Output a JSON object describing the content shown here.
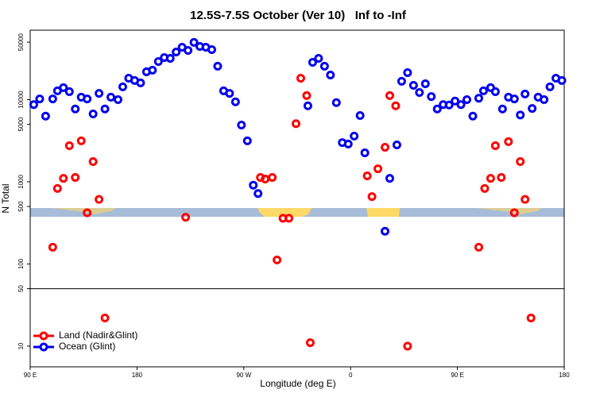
{
  "chart_data": {
    "type": "scatter",
    "title": "12.5S-7.5S October (Ver 10)   Inf to -Inf",
    "x_label": "Longitude (deg E)",
    "y_label": "N Total",
    "xlim": [
      90,
      540
    ],
    "xticks": [
      {
        "value": 90,
        "label": "90 E"
      },
      180,
      {
        "value": 270,
        "label": "90 W"
      },
      {
        "value": 360,
        "label": "0"
      },
      {
        "value": 450,
        "label": "90 E"
      },
      {
        "value": 540,
        "label": "180"
      }
    ],
    "ylim": [
      5.6,
      70000
    ],
    "yticks": [
      10,
      50,
      100,
      500,
      1000,
      5000,
      10000,
      50000
    ],
    "log_y": true,
    "hline": 50,
    "legend": "bottom-left",
    "series": [
      {
        "name": "Land (Nadir&Glint)",
        "color": "#ff0000",
        "x": [
          109,
          113,
          118,
          123,
          128,
          133,
          138,
          143,
          148,
          153,
          221,
          284,
          288,
          294,
          298,
          303,
          308,
          314,
          318,
          323,
          326,
          374,
          378,
          383,
          389,
          393,
          398,
          408,
          468,
          473,
          478,
          482,
          487,
          493,
          498,
          503,
          507,
          512
        ],
        "values": [
          160,
          830,
          1100,
          2750,
          1130,
          3150,
          420,
          1760,
          610,
          22,
          370,
          1130,
          1080,
          1130,
          112,
          360,
          360,
          5100,
          18200,
          11200,
          11,
          1180,
          660,
          1440,
          2630,
          11200,
          8400,
          10,
          160,
          830,
          1100,
          2750,
          1130,
          3080,
          420,
          1760,
          610,
          22
        ]
      },
      {
        "name": "Ocean (Glint)",
        "color": "#0000ee",
        "x": [
          93,
          98,
          103,
          109,
          113,
          118,
          123,
          128,
          133,
          138,
          143,
          148,
          153,
          158,
          164,
          168,
          173,
          178,
          183,
          188,
          193,
          198,
          203,
          208,
          213,
          218,
          223,
          228,
          233,
          238,
          243,
          248,
          253,
          258,
          263,
          268,
          273,
          278,
          282,
          324,
          328,
          333,
          338,
          343,
          348,
          353,
          358,
          363,
          368,
          372,
          389,
          393,
          399,
          403,
          408,
          413,
          418,
          423,
          428,
          433,
          438,
          443,
          448,
          453,
          458,
          463,
          468,
          472,
          478,
          482,
          488,
          493,
          498,
          503,
          507,
          513,
          518,
          523,
          528,
          533,
          538
        ],
        "values": [
          8700,
          10200,
          6300,
          10200,
          12800,
          14000,
          12500,
          7700,
          10700,
          10200,
          6700,
          11900,
          7700,
          10700,
          10000,
          14300,
          18200,
          17100,
          16000,
          21800,
          22800,
          29100,
          32500,
          31800,
          38000,
          43400,
          39700,
          49700,
          44400,
          43400,
          40600,
          25500,
          12800,
          11900,
          9400,
          4900,
          3150,
          910,
          720,
          8400,
          28400,
          31800,
          25500,
          19900,
          9200,
          3000,
          2880,
          3600,
          6400,
          2250,
          250,
          1100,
          2810,
          16700,
          21300,
          14900,
          12200,
          15600,
          10900,
          7700,
          8700,
          8600,
          9600,
          8700,
          10000,
          6300,
          10400,
          12800,
          14000,
          12500,
          7700,
          10700,
          10200,
          6500,
          11700,
          7800,
          10700,
          10000,
          14300,
          18200,
          17100
        ]
      }
    ]
  }
}
